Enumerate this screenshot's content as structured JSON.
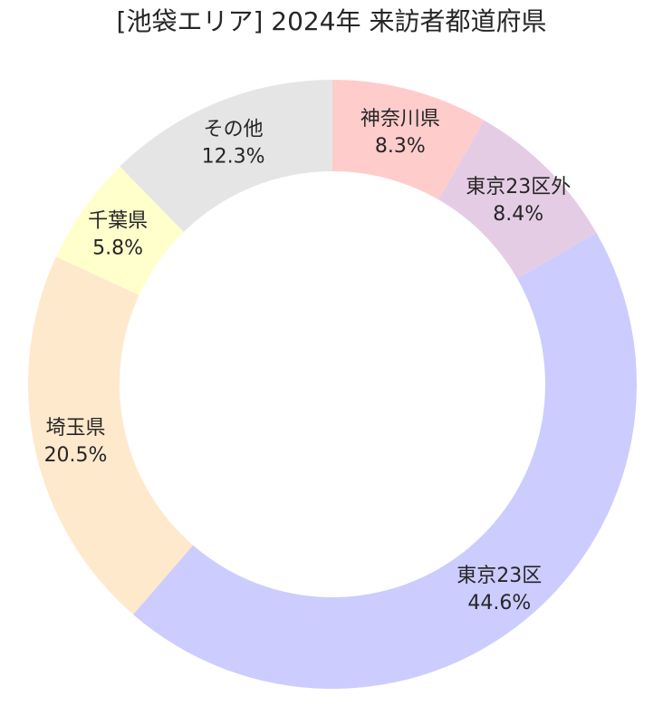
{
  "chart_data": {
    "type": "pie",
    "title": "[池袋エリア] 2024年 来訪者都道府県",
    "style": "donut",
    "start": "top",
    "direction": "clockwise",
    "slices": [
      {
        "label": "神奈川県",
        "value": 8.3,
        "value_label": "8.3%",
        "color": "#ffcccc"
      },
      {
        "label": "東京23区外",
        "value": 8.4,
        "value_label": "8.4%",
        "color": "#e5cce5"
      },
      {
        "label": "東京23区",
        "value": 44.6,
        "value_label": "44.6%",
        "color": "#ccccff"
      },
      {
        "label": "埼玉県",
        "value": 20.5,
        "value_label": "20.5%",
        "color": "#ffe9cc"
      },
      {
        "label": "千葉県",
        "value": 5.8,
        "value_label": "5.8%",
        "color": "#ffffcc"
      },
      {
        "label": "その他",
        "value": 12.3,
        "value_label": "12.3%",
        "color": "#e5e5e5"
      }
    ]
  }
}
